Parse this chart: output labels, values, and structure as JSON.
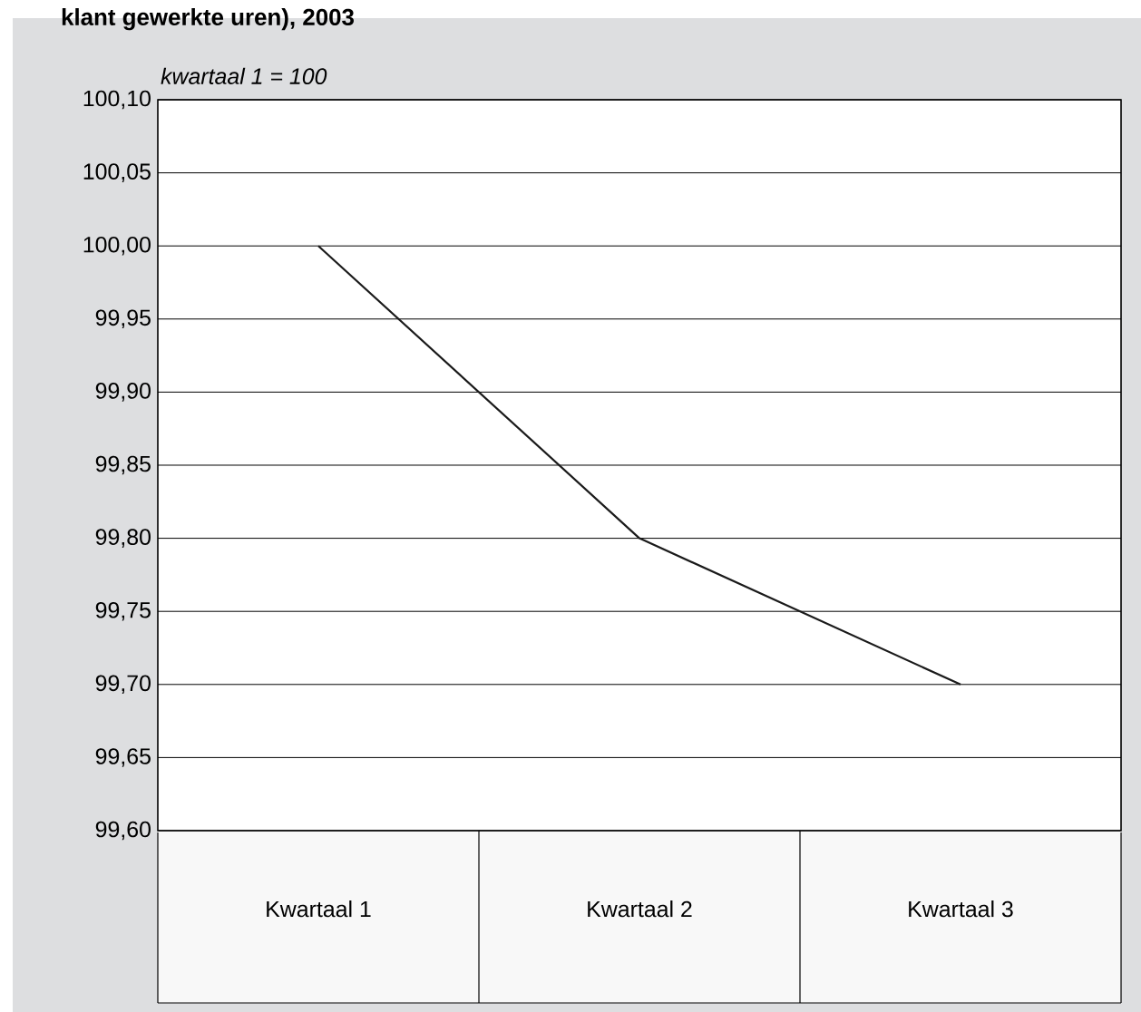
{
  "chart_data": {
    "type": "line",
    "title": "klant gewerkte uren), 2003",
    "subtitle": "kwartaal 1 = 100",
    "categories": [
      "Kwartaal 1",
      "Kwartaal 2",
      "Kwartaal 3"
    ],
    "series": [
      {
        "color": "#1a1a1a",
        "values": [
          100.0,
          99.8,
          99.7
        ]
      }
    ],
    "ylim": [
      99.6,
      100.1
    ],
    "yticks": [
      {
        "value": 99.6,
        "label": "99,60"
      },
      {
        "value": 99.65,
        "label": "99,65"
      },
      {
        "value": 99.7,
        "label": "99,70"
      },
      {
        "value": 99.75,
        "label": "99,75"
      },
      {
        "value": 99.8,
        "label": "99,80"
      },
      {
        "value": 99.85,
        "label": "99,85"
      },
      {
        "value": 99.9,
        "label": "99,90"
      },
      {
        "value": 99.95,
        "label": "99,95"
      },
      {
        "value": 100.0,
        "label": "100,00"
      },
      {
        "value": 100.05,
        "label": "100,05"
      },
      {
        "value": 100.1,
        "label": "100,10"
      }
    ],
    "grid": "y",
    "marker": "none"
  }
}
